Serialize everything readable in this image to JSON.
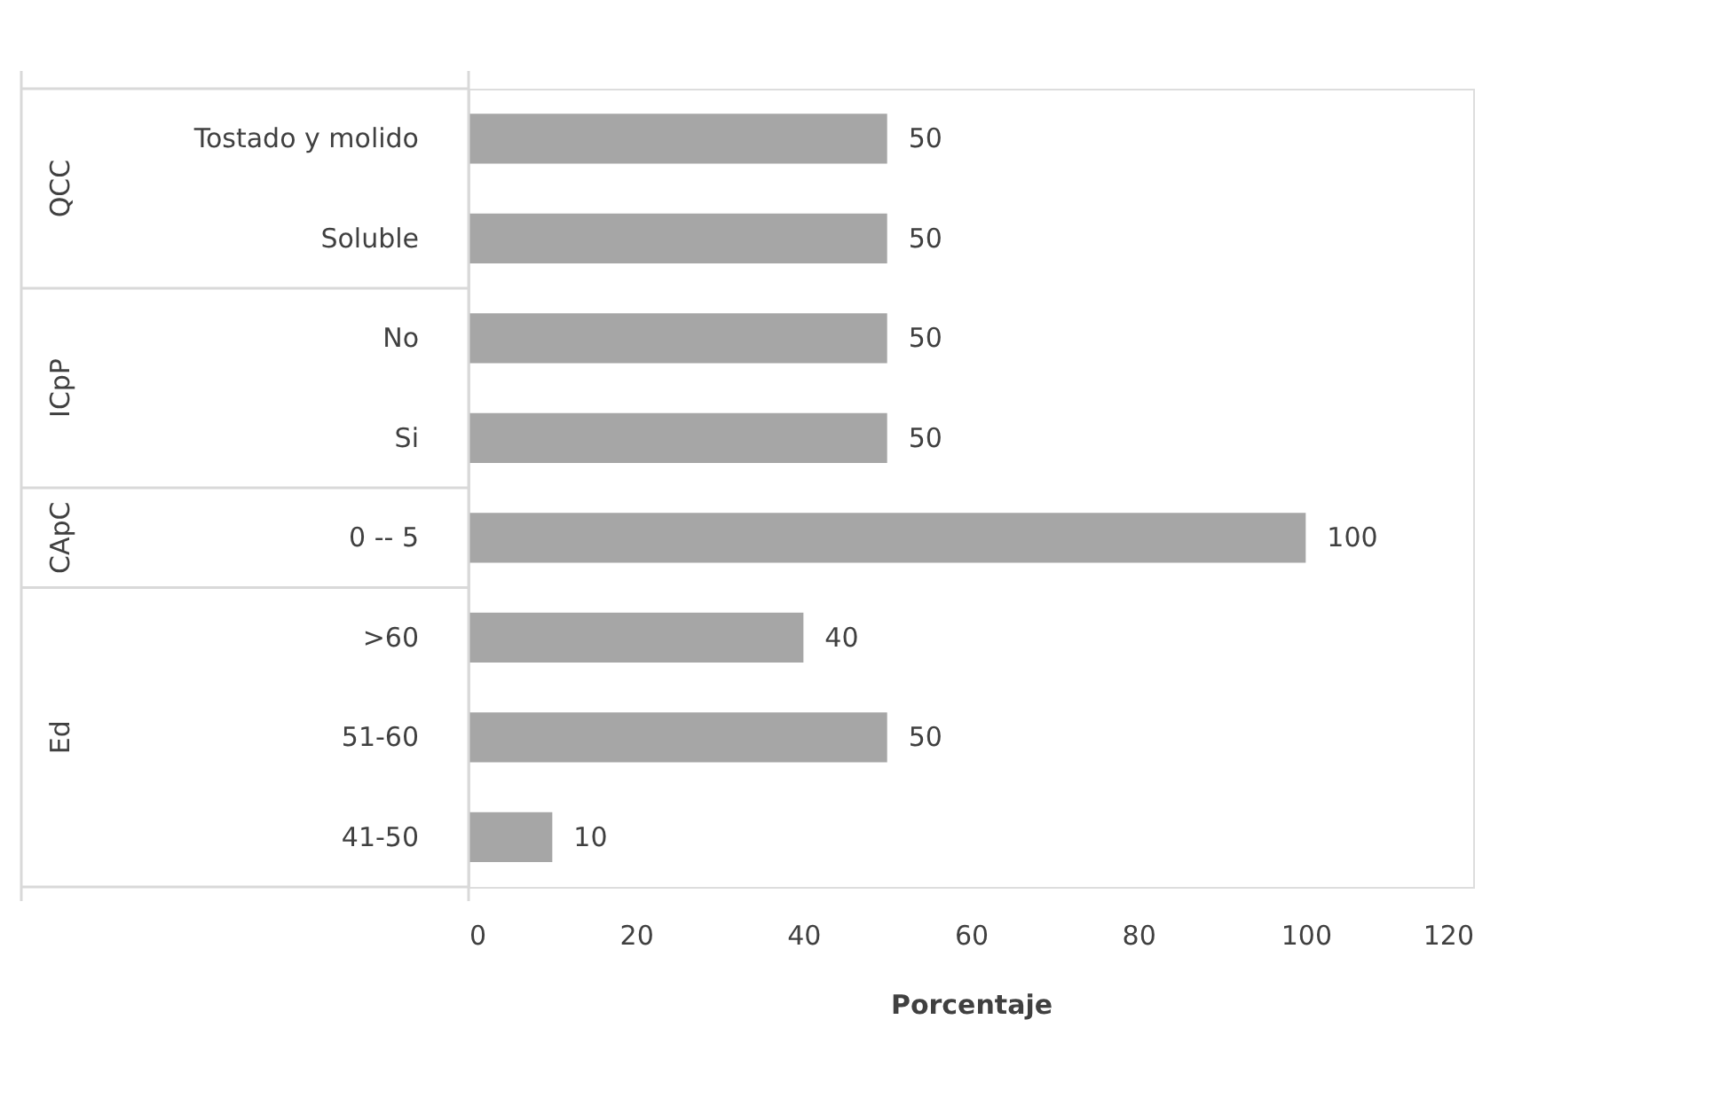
{
  "chart_data": {
    "type": "bar",
    "orientation": "horizontal",
    "xlabel": "Porcentaje",
    "categories": [
      "Tostado y molido",
      "Soluble",
      "No",
      "Si",
      "0 -- 5",
      ">60",
      "51-60",
      "41-50"
    ],
    "values": [
      50,
      50,
      50,
      50,
      100,
      40,
      50,
      10
    ],
    "color": "#a6a6a6",
    "xlim": [
      0,
      120
    ],
    "xticks": [
      0,
      20,
      40,
      60,
      80,
      100,
      120
    ],
    "data_labels": true,
    "grid": false,
    "annotations": [
      "QCC",
      "ICpP",
      "CApC",
      "Ed"
    ]
  }
}
